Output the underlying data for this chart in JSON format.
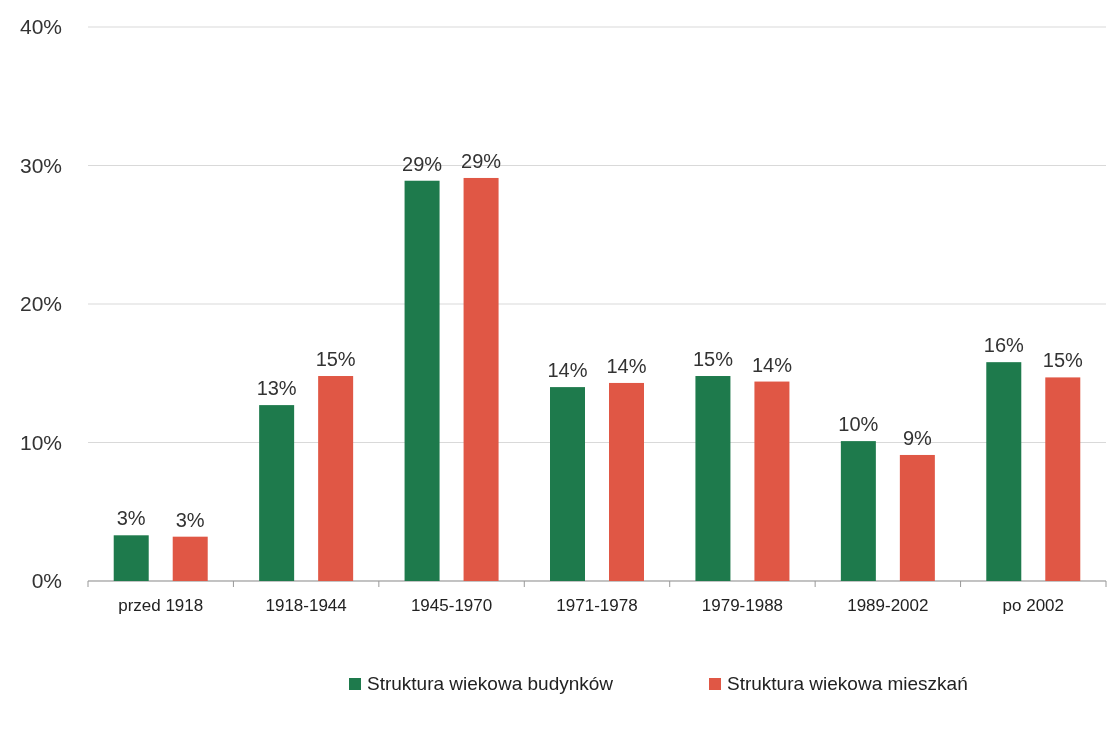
{
  "chart_data": {
    "type": "bar",
    "categories": [
      "przed 1918",
      "1918-1944",
      "1945-1970",
      "1971-1978",
      "1979-1988",
      "1989-2002",
      "po 2002"
    ],
    "series": [
      {
        "name": "Struktura wiekowa budynków",
        "color": "#1e7a4c",
        "values": [
          3.3,
          12.7,
          28.9,
          14.0,
          14.8,
          10.1,
          15.8
        ],
        "value_labels": [
          "3%",
          "13%",
          "29%",
          "14%",
          "15%",
          "10%",
          "16%"
        ]
      },
      {
        "name": "Struktura wiekowa mieszkań",
        "color": "#e05745",
        "values": [
          3.2,
          14.8,
          29.1,
          14.3,
          14.4,
          9.1,
          14.7
        ],
        "value_labels": [
          "3%",
          "15%",
          "29%",
          "14%",
          "14%",
          "9%",
          "15%"
        ]
      }
    ],
    "ylim": [
      0,
      40
    ],
    "yticks": [
      {
        "value": 0,
        "label": "0%"
      },
      {
        "value": 10,
        "label": "10%"
      },
      {
        "value": 20,
        "label": "20%"
      },
      {
        "value": 30,
        "label": "30%"
      },
      {
        "value": 40,
        "label": "40%"
      }
    ],
    "grid": "y",
    "legend": "bottom"
  }
}
